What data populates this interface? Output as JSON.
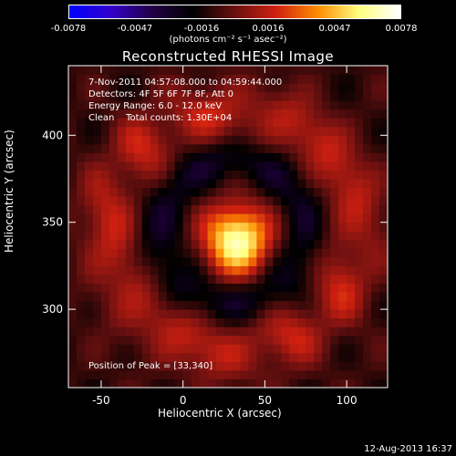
{
  "colorbar": {
    "ticks": [
      "-0.0078",
      "-0.0047",
      "-0.0016",
      "0.0016",
      "0.0047",
      "0.0078"
    ],
    "units": "(photons cm⁻² s⁻¹ asec⁻²)"
  },
  "title": "Reconstructed RHESSI Image",
  "info": {
    "time": "7-Nov-2011 04:57:08.000 to 04:59:44.000",
    "detectors": "Detectors: 4F 5F 6F 7F 8F, Att 0",
    "energy": "Energy Range: 6.0 - 12.0 keV",
    "clean": "Clean    Total counts: 1.30E+04",
    "peak": "Position of Peak = [33,340]"
  },
  "footer": "12-Aug-2013 16:37",
  "chart_data": {
    "type": "heatmap",
    "title": "Reconstructed RHESSI Image",
    "xlabel": "Heliocentric X (arcsec)",
    "ylabel": "Heliocentric Y (arcsec)",
    "xlim": [
      -70,
      125
    ],
    "ylim": [
      255,
      440
    ],
    "xticks": [
      "-50",
      "0",
      "50",
      "100"
    ],
    "yticks": [
      "300",
      "350",
      "400"
    ],
    "colorscale": [
      "#0000ff",
      "#3300cc",
      "#220044",
      "#000000",
      "#6a1010",
      "#d02010",
      "#ff8c00",
      "#ffff80",
      "#ffffff"
    ],
    "clim": [
      -0.0078,
      0.0078
    ],
    "peak": {
      "x": 33,
      "y": 340
    }
  }
}
